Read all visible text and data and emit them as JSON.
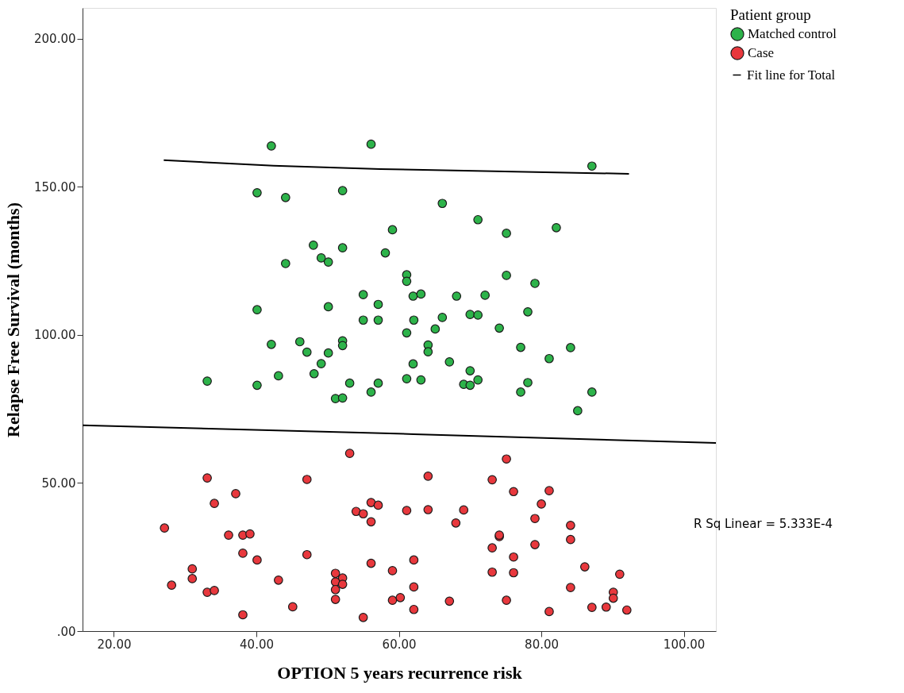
{
  "chart_data": {
    "type": "scatter",
    "xlabel": "OPTION 5 years recurrence risk",
    "ylabel": "Relapse Free Survival (months)",
    "legend_title": "Patient group",
    "legend": "top right",
    "marker": "circle",
    "grid": false,
    "xlim": [
      15.6,
      104.5
    ],
    "ylim": [
      0,
      210.4
    ],
    "xticks": [
      {
        "value": 20,
        "label": "20.00"
      },
      {
        "value": 40,
        "label": "40.00"
      },
      {
        "value": 60,
        "label": "60.00"
      },
      {
        "value": 80,
        "label": "80.00"
      },
      {
        "value": 100,
        "label": "100.00"
      }
    ],
    "yticks": [
      {
        "value": 0,
        "label": ".00"
      },
      {
        "value": 50,
        "label": "50.00"
      },
      {
        "value": 100,
        "label": "100.00"
      },
      {
        "value": 150,
        "label": "150.00"
      },
      {
        "value": 200,
        "label": "200.00"
      }
    ],
    "annotations": [
      "R Sq Linear = 5.333E-4"
    ],
    "series": [
      {
        "name": "Matched control",
        "color": "#2db34a",
        "x": [
          42.1,
          56.1,
          40.1,
          44.1,
          52.1,
          59.1,
          48.0,
          52.1,
          58.1,
          49.1,
          50.1,
          44.1,
          61.1,
          61.1,
          55.0,
          57.1,
          40.1,
          50.1,
          55.0,
          57.1,
          61.1,
          87.1,
          66.1,
          71.1,
          75.1,
          82.1,
          75.1,
          79.1,
          62.0,
          63.1,
          68.1,
          72.1,
          70.0,
          71.1,
          78.1,
          62.1,
          66.1,
          65.1,
          74.1,
          42.1,
          46.1,
          47.1,
          50.1,
          52.1,
          52.1,
          49.1,
          48.1,
          43.1,
          33.1,
          40.1,
          53.1,
          57.1,
          56.1,
          51.1,
          52.1,
          61.1,
          62.0,
          64.1,
          64.1,
          67.1,
          77.1,
          84.1,
          81.1,
          70.0,
          71.1,
          69.1,
          70.0,
          63.1,
          78.1,
          77.1,
          87.1,
          85.1
        ],
        "values": [
          163.8,
          164.4,
          148.0,
          146.4,
          148.7,
          135.5,
          130.3,
          129.4,
          127.7,
          126.0,
          124.6,
          124.1,
          120.3,
          118.1,
          113.6,
          110.3,
          108.5,
          109.5,
          105.0,
          105.0,
          100.7,
          157.0,
          144.4,
          138.9,
          134.3,
          136.2,
          120.1,
          117.4,
          113.1,
          113.8,
          113.1,
          113.4,
          106.9,
          106.7,
          107.8,
          105.0,
          105.9,
          102.0,
          102.3,
          96.8,
          97.7,
          94.2,
          93.9,
          98.0,
          96.4,
          90.3,
          86.9,
          86.2,
          84.4,
          83.0,
          83.7,
          83.7,
          80.7,
          78.5,
          78.7,
          85.2,
          90.2,
          96.6,
          94.3,
          90.9,
          95.8,
          95.7,
          92.0,
          87.9,
          84.8,
          83.3,
          83.0,
          84.8,
          83.9,
          80.7,
          80.7,
          74.4
        ]
      },
      {
        "name": "Case",
        "color": "#e8383d",
        "x": [
          53.1,
          33.1,
          47.1,
          37.1,
          34.1,
          56.1,
          57.1,
          54.0,
          55.0,
          56.1,
          61.1,
          27.1,
          36.1,
          38.1,
          39.1,
          38.1,
          40.1,
          47.1,
          56.1,
          59.1,
          31.0,
          31.0,
          28.1,
          33.1,
          34.1,
          43.1,
          51.1,
          52.1,
          51.1,
          52.1,
          51.1,
          51.1,
          45.1,
          38.1,
          55.0,
          59.1,
          60.2,
          75.1,
          64.1,
          73.1,
          76.1,
          81.1,
          80.0,
          64.1,
          69.1,
          68.0,
          79.1,
          84.1,
          84.1,
          74.1,
          74.1,
          73.1,
          79.1,
          76.1,
          62.1,
          73.1,
          76.1,
          86.1,
          91.0,
          62.1,
          84.1,
          90.1,
          90.1,
          62.1,
          67.1,
          75.1,
          81.1,
          87.1,
          89.1,
          92.0
        ],
        "values": [
          60.0,
          51.7,
          51.2,
          46.4,
          43.1,
          43.4,
          42.5,
          40.4,
          39.6,
          36.9,
          40.7,
          34.8,
          32.4,
          32.4,
          32.8,
          26.3,
          24.0,
          25.8,
          22.9,
          20.4,
          21.0,
          17.7,
          15.5,
          13.1,
          13.7,
          17.2,
          19.5,
          17.9,
          16.6,
          15.8,
          14.0,
          10.7,
          8.2,
          5.5,
          4.6,
          10.4,
          11.3,
          58.1,
          52.3,
          51.1,
          47.1,
          47.4,
          42.9,
          41.0,
          40.9,
          36.5,
          38.0,
          35.7,
          30.9,
          31.9,
          32.4,
          28.1,
          29.2,
          25.0,
          24.0,
          19.9,
          19.7,
          21.7,
          19.2,
          14.9,
          14.7,
          13.1,
          11.1,
          7.3,
          10.1,
          10.4,
          6.6,
          8.0,
          8.1,
          7.1
        ]
      },
      {
        "name": "Fit line for Total",
        "color": "#000000",
        "type": "line",
        "marker": "none",
        "line_style": "solid",
        "x": [
          27.0,
          42.4,
          57.4,
          92.3
        ],
        "values": [
          159.0,
          157.1,
          156.0,
          154.4
        ]
      },
      {
        "color": "#000000",
        "type": "line",
        "marker": "none",
        "line_style": "solid",
        "x": [
          15.6,
          62.1,
          104.5
        ],
        "values": [
          69.5,
          66.5,
          63.5
        ]
      }
    ]
  }
}
